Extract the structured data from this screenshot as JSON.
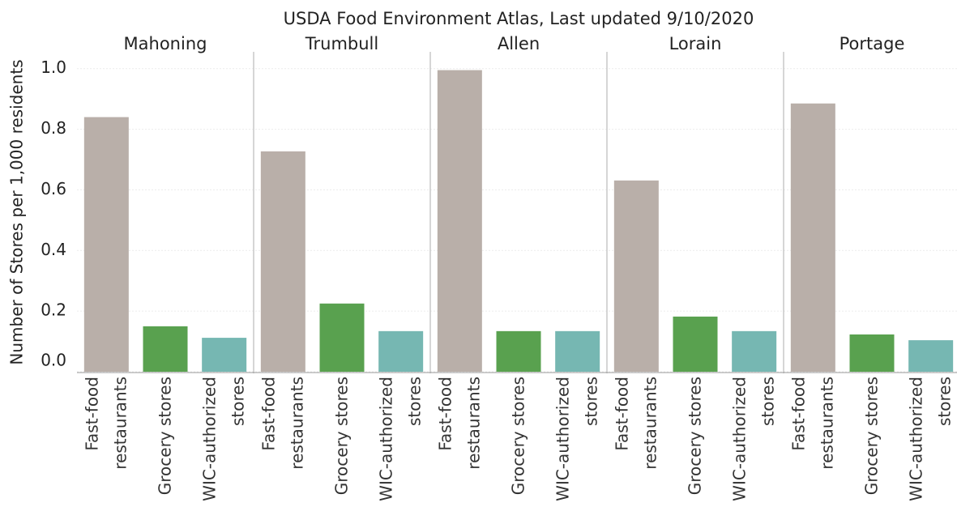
{
  "chart_data": {
    "type": "bar",
    "title": "USDA Food Environment Atlas, Last updated 9/10/2020",
    "y_label": "Number of Stores per 1,000 residents",
    "categories": [
      "Fast-food restaurants",
      "Grocery stores",
      "WIC-authorized stores"
    ],
    "colors": [
      "#b9afa9",
      "#59a14f",
      "#76b7b2"
    ],
    "panels": [
      {
        "name": "Mahoning",
        "values": [
          0.84,
          0.15,
          0.112
        ]
      },
      {
        "name": "Trumbull",
        "values": [
          0.727,
          0.225,
          0.134
        ]
      },
      {
        "name": "Allen",
        "values": [
          0.995,
          0.134,
          0.134
        ]
      },
      {
        "name": "Lorain",
        "values": [
          0.631,
          0.182,
          0.134
        ]
      },
      {
        "name": "Portage",
        "values": [
          0.885,
          0.123,
          0.104
        ]
      }
    ],
    "ylim": [
      0,
      1.05
    ],
    "yticks": [
      {
        "value": 0,
        "label": "0.0"
      },
      0.2,
      0.4,
      0.6,
      0.8,
      {
        "value": 1,
        "label": "1.0"
      }
    ],
    "grid": true
  }
}
